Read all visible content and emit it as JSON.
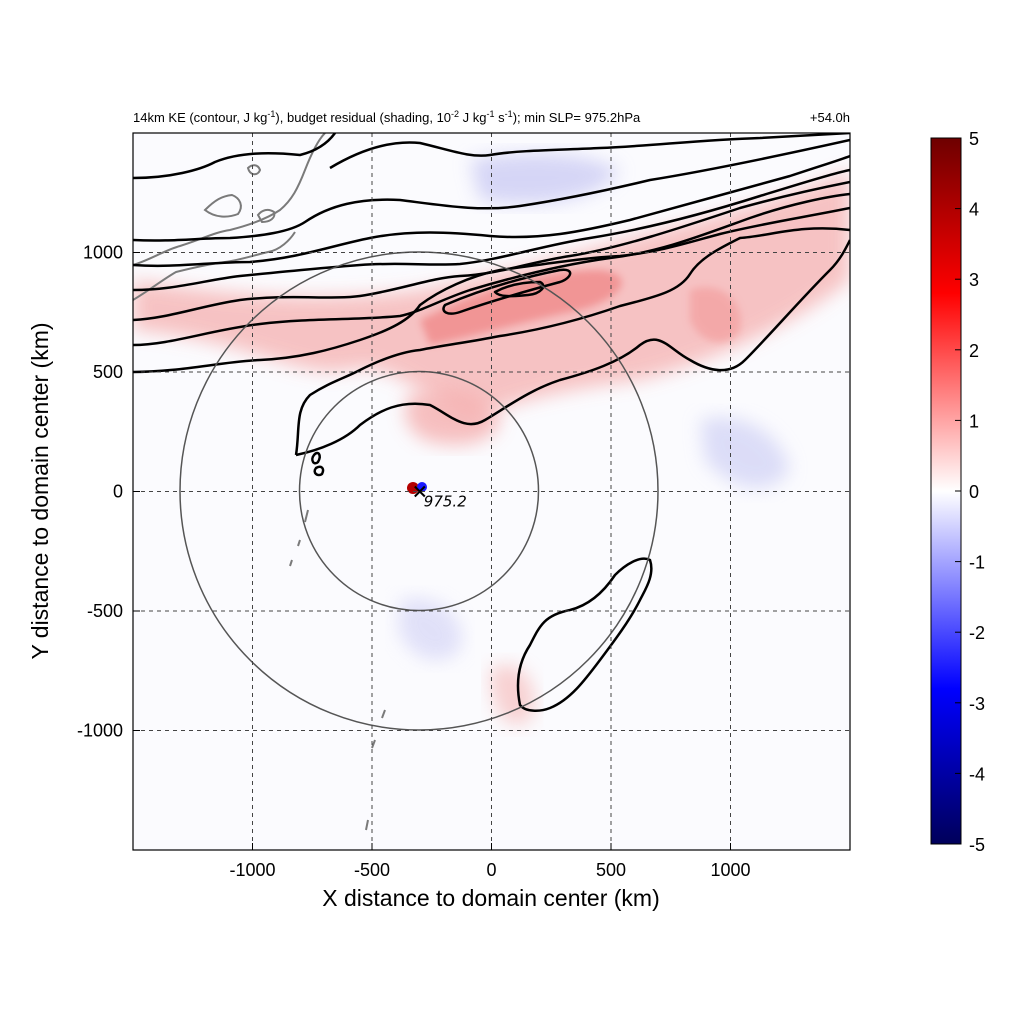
{
  "chart_data": {
    "type": "heatmap",
    "title_parts": {
      "a": "14km KE (contour, J kg",
      "a_sup": "-1",
      "b": "), budget residual (shading, 10",
      "b_sup": "-2",
      "c": " J kg",
      "c_sup": "-1",
      "d": " s",
      "d_sup": "-1",
      "e": "); min SLP= 975.2hPa"
    },
    "time_label": "+54.0h",
    "xlabel": "X distance to domain center (km)",
    "ylabel": "Y distance to domain center (km)",
    "xlim": [
      -1500,
      1500
    ],
    "ylim": [
      -1500,
      1500
    ],
    "xticks": [
      -1000,
      -500,
      0,
      500,
      1000
    ],
    "yticks": [
      -1000,
      -500,
      0,
      500,
      1000
    ],
    "grid": "dashed",
    "colorbar": {
      "min": -5,
      "max": 5,
      "ticks": [
        5,
        4,
        3,
        2,
        1,
        0,
        -1,
        -2,
        -3,
        -4,
        -5
      ],
      "colors": [
        "#00005a",
        "#0000ff",
        "#ffffff",
        "#ff0000",
        "#6e0000"
      ]
    },
    "center_marker": {
      "x": -300,
      "y": 0,
      "label": "975.2"
    },
    "range_circles_km": [
      500,
      1000
    ],
    "colors": {
      "contour": "#000000",
      "coastline": "#7a7a7a",
      "circle": "#555555",
      "positive": "#e33a3a",
      "negative": "#3a3ae3"
    }
  }
}
